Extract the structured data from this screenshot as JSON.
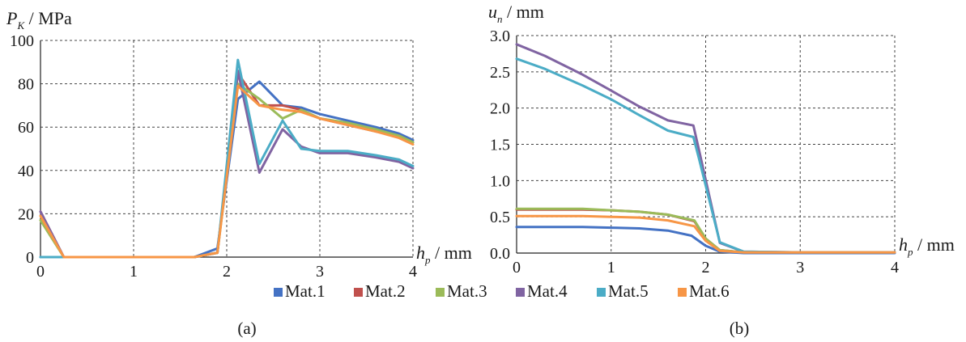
{
  "legend": [
    "Mat.1",
    "Mat.2",
    "Mat.3",
    "Mat.4",
    "Mat.5",
    "Mat.6"
  ],
  "colors": {
    "Mat.1": "#4472c4",
    "Mat.2": "#c0504d",
    "Mat.3": "#9bbb59",
    "Mat.4": "#8064a2",
    "Mat.5": "#4bacc6",
    "Mat.6": "#f79646"
  },
  "chart_data": [
    {
      "type": "line",
      "caption": "(a)",
      "ylabel": {
        "main": "P",
        "sub": "K",
        "unit": " / MPa"
      },
      "xlabel": {
        "main": "h",
        "sub": "p",
        "unit": " / mm"
      },
      "xlim": [
        0,
        4
      ],
      "ylim": [
        0,
        100
      ],
      "xticks": [
        "0",
        "1",
        "2",
        "3",
        "4"
      ],
      "yticks": [
        "0",
        "20",
        "40",
        "60",
        "80",
        "100"
      ],
      "grid": true,
      "series": [
        {
          "name": "Mat.1",
          "x": [
            0,
            0.25,
            1.65,
            1.9,
            2.12,
            2.35,
            2.6,
            2.8,
            3.0,
            3.3,
            3.6,
            3.85,
            4.0
          ],
          "y": [
            0,
            0,
            0,
            4,
            73,
            81,
            70,
            69,
            66,
            63,
            60,
            57,
            54
          ]
        },
        {
          "name": "Mat.2",
          "x": [
            0,
            0.25,
            1.65,
            1.9,
            2.12,
            2.35,
            2.6,
            2.8,
            3.0,
            3.3,
            3.6,
            3.85,
            4.0
          ],
          "y": [
            21,
            0,
            0,
            2,
            85,
            70,
            70,
            68,
            64,
            61,
            58,
            56,
            53
          ]
        },
        {
          "name": "Mat.3",
          "x": [
            0,
            0.25,
            1.65,
            1.9,
            2.12,
            2.35,
            2.6,
            2.8,
            3.0,
            3.3,
            3.6,
            3.85,
            4.0
          ],
          "y": [
            17,
            0,
            0,
            2,
            80,
            73,
            64,
            68,
            64,
            62,
            59,
            56,
            53
          ]
        },
        {
          "name": "Mat.4",
          "x": [
            0,
            0.25,
            1.65,
            1.9,
            2.12,
            2.35,
            2.6,
            2.8,
            3.0,
            3.3,
            3.6,
            3.85,
            4.0
          ],
          "y": [
            21,
            0,
            0,
            2,
            86,
            39,
            59,
            51,
            48,
            48,
            46,
            44,
            41
          ]
        },
        {
          "name": "Mat.5",
          "x": [
            0,
            0.25,
            1.65,
            1.9,
            2.12,
            2.35,
            2.6,
            2.8,
            3.0,
            3.3,
            3.6,
            3.85,
            4.0
          ],
          "y": [
            0,
            0,
            0,
            2,
            91,
            43,
            63,
            50,
            49,
            49,
            47,
            45,
            42
          ]
        },
        {
          "name": "Mat.6",
          "x": [
            0,
            0.25,
            1.65,
            1.9,
            2.12,
            2.35,
            2.6,
            2.8,
            3.0,
            3.3,
            3.6,
            3.85,
            4.0
          ],
          "y": [
            19,
            0,
            0,
            2,
            79,
            70,
            68,
            67,
            64,
            61,
            58,
            55,
            52
          ]
        }
      ]
    },
    {
      "type": "line",
      "caption": "(b)",
      "ylabel": {
        "main": "u",
        "sub": "n",
        "unit": " / mm"
      },
      "xlabel": {
        "main": "h",
        "sub": "p",
        "unit": " / mm"
      },
      "xlim": [
        0,
        4
      ],
      "ylim": [
        0,
        3.0
      ],
      "xticks": [
        "0",
        "1",
        "2",
        "3",
        "4"
      ],
      "yticks": [
        "0.0",
        "0.5",
        "1.0",
        "1.5",
        "2.0",
        "2.5",
        "3.0"
      ],
      "grid": true,
      "series": [
        {
          "name": "Mat.1",
          "x": [
            0,
            0.4,
            0.7,
            1.0,
            1.3,
            1.6,
            1.85,
            2.0,
            2.15,
            2.4,
            3.0,
            4.0
          ],
          "y": [
            0.36,
            0.36,
            0.36,
            0.35,
            0.34,
            0.31,
            0.24,
            0.1,
            0.02,
            0.0,
            0.0,
            0.0
          ]
        },
        {
          "name": "Mat.2",
          "x": [
            0,
            0.4,
            0.7,
            1.0,
            1.3,
            1.6,
            1.88,
            2.0,
            2.15,
            2.4,
            3.0,
            4.0
          ],
          "y": [
            0.6,
            0.6,
            0.6,
            0.59,
            0.57,
            0.53,
            0.44,
            0.2,
            0.04,
            0.01,
            0.01,
            0.01
          ]
        },
        {
          "name": "Mat.3",
          "x": [
            0,
            0.4,
            0.7,
            1.0,
            1.3,
            1.6,
            1.88,
            2.0,
            2.15,
            2.4,
            3.0,
            4.0
          ],
          "y": [
            0.61,
            0.61,
            0.61,
            0.59,
            0.57,
            0.53,
            0.45,
            0.2,
            0.04,
            0.01,
            0.01,
            0.01
          ]
        },
        {
          "name": "Mat.4",
          "x": [
            0,
            0.3,
            0.7,
            1.0,
            1.3,
            1.6,
            1.87,
            1.93,
            2.15,
            2.4,
            3.0,
            4.0
          ],
          "y": [
            2.88,
            2.72,
            2.46,
            2.24,
            2.02,
            1.83,
            1.76,
            1.42,
            0.14,
            0.02,
            0.01,
            0.01
          ]
        },
        {
          "name": "Mat.5",
          "x": [
            0,
            0.3,
            0.7,
            1.0,
            1.3,
            1.6,
            1.87,
            1.93,
            2.15,
            2.4,
            3.0,
            4.0
          ],
          "y": [
            2.68,
            2.54,
            2.31,
            2.12,
            1.9,
            1.69,
            1.6,
            1.3,
            0.15,
            0.02,
            0.01,
            0.01
          ]
        },
        {
          "name": "Mat.6",
          "x": [
            0,
            0.4,
            0.7,
            1.0,
            1.3,
            1.6,
            1.88,
            2.0,
            2.15,
            2.4,
            3.0,
            4.0
          ],
          "y": [
            0.51,
            0.51,
            0.51,
            0.5,
            0.49,
            0.45,
            0.37,
            0.17,
            0.03,
            0.01,
            0.01,
            0.01
          ]
        }
      ]
    }
  ]
}
